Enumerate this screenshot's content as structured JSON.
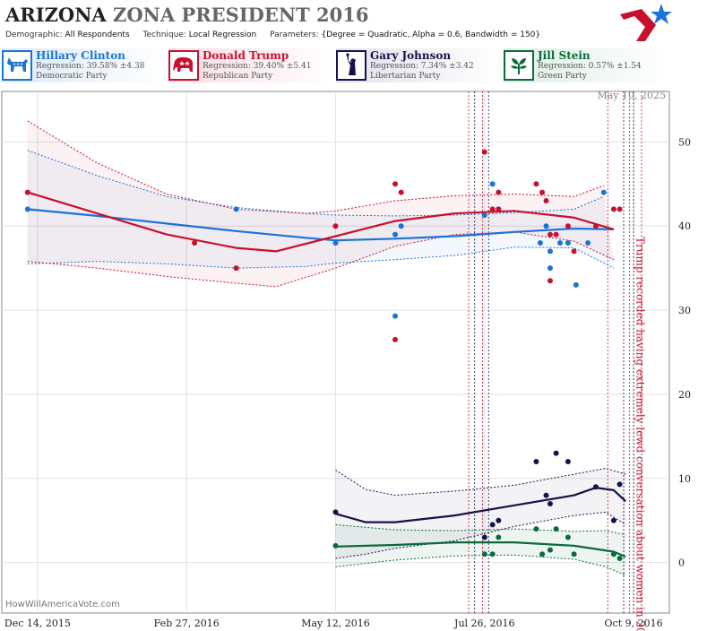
{
  "header": {
    "title_state": "ARIZONA",
    "title_rest": "ZONA PRESIDENT 2016",
    "demographic_label": "Demographic:",
    "demographic_value": "All Respondents",
    "technique_label": "Technique:",
    "technique_value": "Local Regression",
    "parameters_label": "Parameters:",
    "parameters_value": "{Degree = Quadratic, Alpha = 0.6, Bandwidth = 150}"
  },
  "candidates": [
    {
      "name": "Hillary Clinton",
      "regression": "Regression: 39.58% ±4.38",
      "party": "Democratic Party",
      "color": "#1a73d6",
      "icon": "donkey-icon"
    },
    {
      "name": "Donald Trump",
      "regression": "Regression: 39.40% ±5.41",
      "party": "Republican Party",
      "color": "#c8102e",
      "icon": "elephant-icon"
    },
    {
      "name": "Gary Johnson",
      "regression": "Regression: 7.34% ±3.42",
      "party": "Libertarian Party",
      "color": "#14124a",
      "icon": "statue-of-liberty-icon"
    },
    {
      "name": "Jill Stein",
      "regression": "Regression: 0.57% ±1.54",
      "party": "Green Party",
      "color": "#0a6b3a",
      "icon": "leaf-icon"
    }
  ],
  "watermark": "HowWillAmericaVote.com",
  "datestamp": "May 10, 2025",
  "chart_data": {
    "type": "scatter",
    "x_tick_labels": [
      "Dec 14, 2015",
      "Feb 27, 2016",
      "May 12, 2016",
      "Jul 26, 2016",
      "Oct 9, 2016"
    ],
    "x_ticks": [
      "2015-12-14",
      "2016-02-27",
      "2016-05-12",
      "2016-07-26",
      "2016-10-09"
    ],
    "xlim": [
      "2015-11-26",
      "2016-10-27"
    ],
    "y_ticks": [
      0,
      10,
      20,
      30,
      40,
      50
    ],
    "ylim": [
      -6,
      56
    ],
    "grid": true,
    "annotation": "Trump recorded having extremely lewd conversation about women in 2005",
    "annotation_date": "2016-10-07",
    "event_lines": [
      "2016-07-18",
      "2016-07-21",
      "2016-07-25",
      "2016-07-28",
      "2016-09-26",
      "2016-10-04",
      "2016-10-07",
      "2016-10-09",
      "2016-10-13"
    ],
    "series": [
      {
        "name": "Hillary Clinton",
        "color": "#1a73d6",
        "points": [
          [
            "2015-12-09",
            42
          ],
          [
            "2016-03-23",
            42
          ],
          [
            "2016-05-12",
            38
          ],
          [
            "2016-06-11",
            29.3
          ],
          [
            "2016-06-11",
            39
          ],
          [
            "2016-06-14",
            40
          ],
          [
            "2016-07-26",
            41.3
          ],
          [
            "2016-07-30",
            45
          ],
          [
            "2016-08-02",
            42
          ],
          [
            "2016-08-23",
            38
          ],
          [
            "2016-08-26",
            40
          ],
          [
            "2016-08-28",
            35
          ],
          [
            "2016-08-28",
            37
          ],
          [
            "2016-09-02",
            38
          ],
          [
            "2016-09-06",
            38
          ],
          [
            "2016-09-10",
            33
          ],
          [
            "2016-09-16",
            38
          ],
          [
            "2016-09-24",
            44
          ]
        ],
        "fit": [
          [
            "2015-12-09",
            42
          ],
          [
            "2016-01-13",
            41.2
          ],
          [
            "2016-02-17",
            40.3
          ],
          [
            "2016-03-23",
            39.4
          ],
          [
            "2016-04-27",
            38.6
          ],
          [
            "2016-05-12",
            38.3
          ],
          [
            "2016-06-11",
            38.5
          ],
          [
            "2016-07-11",
            38.8
          ],
          [
            "2016-08-10",
            39.3
          ],
          [
            "2016-09-09",
            39.7
          ],
          [
            "2016-09-29",
            39.6
          ]
        ],
        "fit_upper": [
          [
            "2015-12-09",
            49
          ],
          [
            "2016-01-13",
            46
          ],
          [
            "2016-02-17",
            43.5
          ],
          [
            "2016-03-23",
            42.2
          ],
          [
            "2016-04-27",
            41.5
          ],
          [
            "2016-05-12",
            41.3
          ],
          [
            "2016-06-11",
            41.2
          ],
          [
            "2016-07-11",
            41.3
          ],
          [
            "2016-08-10",
            41.6
          ],
          [
            "2016-09-09",
            42
          ],
          [
            "2016-09-24",
            43.5
          ]
        ],
        "fit_lower": [
          [
            "2015-12-09",
            35.5
          ],
          [
            "2016-01-13",
            35.8
          ],
          [
            "2016-02-17",
            35.5
          ],
          [
            "2016-03-23",
            35
          ],
          [
            "2016-04-27",
            35.2
          ],
          [
            "2016-05-12",
            35.6
          ],
          [
            "2016-06-11",
            36
          ],
          [
            "2016-07-11",
            36.5
          ],
          [
            "2016-08-10",
            37.5
          ],
          [
            "2016-09-09",
            37.4
          ],
          [
            "2016-09-29",
            35
          ]
        ]
      },
      {
        "name": "Donald Trump",
        "color": "#c8102e",
        "points": [
          [
            "2015-12-09",
            44
          ],
          [
            "2016-03-02",
            38
          ],
          [
            "2016-03-23",
            35
          ],
          [
            "2016-05-12",
            40
          ],
          [
            "2016-06-11",
            26.5
          ],
          [
            "2016-06-11",
            45
          ],
          [
            "2016-06-14",
            44
          ],
          [
            "2016-07-26",
            48.8
          ],
          [
            "2016-07-30",
            42
          ],
          [
            "2016-08-02",
            44
          ],
          [
            "2016-08-02",
            42
          ],
          [
            "2016-08-21",
            45
          ],
          [
            "2016-08-24",
            44
          ],
          [
            "2016-08-26",
            43
          ],
          [
            "2016-08-28",
            39
          ],
          [
            "2016-08-28",
            33.5
          ],
          [
            "2016-08-31",
            39
          ],
          [
            "2016-09-06",
            40
          ],
          [
            "2016-09-09",
            37
          ],
          [
            "2016-09-20",
            40
          ],
          [
            "2016-09-29",
            42
          ],
          [
            "2016-10-02",
            42
          ]
        ],
        "fit": [
          [
            "2015-12-09",
            44
          ],
          [
            "2016-01-13",
            41.5
          ],
          [
            "2016-02-17",
            39
          ],
          [
            "2016-03-23",
            37.4
          ],
          [
            "2016-04-12",
            37
          ],
          [
            "2016-05-12",
            38.8
          ],
          [
            "2016-06-11",
            40.6
          ],
          [
            "2016-07-11",
            41.5
          ],
          [
            "2016-08-10",
            41.8
          ],
          [
            "2016-09-09",
            41
          ],
          [
            "2016-09-29",
            39.6
          ]
        ],
        "fit_upper": [
          [
            "2015-12-09",
            52.5
          ],
          [
            "2016-01-13",
            47.5
          ],
          [
            "2016-02-17",
            43.8
          ],
          [
            "2016-03-23",
            42
          ],
          [
            "2016-04-27",
            41.5
          ],
          [
            "2016-05-12",
            41.8
          ],
          [
            "2016-06-11",
            43
          ],
          [
            "2016-07-11",
            43.6
          ],
          [
            "2016-08-10",
            43.8
          ],
          [
            "2016-09-09",
            43.5
          ],
          [
            "2016-09-24",
            44.8
          ]
        ],
        "fit_lower": [
          [
            "2015-12-09",
            35.8
          ],
          [
            "2016-01-13",
            35
          ],
          [
            "2016-02-17",
            34
          ],
          [
            "2016-03-23",
            33.2
          ],
          [
            "2016-04-12",
            32.8
          ],
          [
            "2016-05-12",
            35
          ],
          [
            "2016-06-11",
            37.6
          ],
          [
            "2016-07-11",
            39
          ],
          [
            "2016-08-10",
            39.3
          ],
          [
            "2016-09-09",
            38.2
          ],
          [
            "2016-09-29",
            36
          ]
        ]
      },
      {
        "name": "Gary Johnson",
        "color": "#14124a",
        "points": [
          [
            "2016-05-12",
            6
          ],
          [
            "2016-07-26",
            3
          ],
          [
            "2016-07-30",
            4.5
          ],
          [
            "2016-08-02",
            5
          ],
          [
            "2016-08-21",
            12
          ],
          [
            "2016-08-26",
            8
          ],
          [
            "2016-08-28",
            7
          ],
          [
            "2016-08-31",
            13
          ],
          [
            "2016-09-06",
            12
          ],
          [
            "2016-09-20",
            9
          ],
          [
            "2016-09-29",
            5
          ],
          [
            "2016-10-02",
            9.3
          ]
        ],
        "fit": [
          [
            "2016-05-12",
            5.8
          ],
          [
            "2016-05-27",
            4.8
          ],
          [
            "2016-06-11",
            4.8
          ],
          [
            "2016-07-11",
            5.6
          ],
          [
            "2016-08-10",
            6.8
          ],
          [
            "2016-09-09",
            8
          ],
          [
            "2016-09-20",
            8.9
          ],
          [
            "2016-09-29",
            8.6
          ],
          [
            "2016-10-05",
            7.3
          ]
        ],
        "fit_upper": [
          [
            "2016-05-12",
            11
          ],
          [
            "2016-05-27",
            8.7
          ],
          [
            "2016-06-11",
            8
          ],
          [
            "2016-07-11",
            8.5
          ],
          [
            "2016-08-10",
            9.2
          ],
          [
            "2016-09-09",
            10.5
          ],
          [
            "2016-09-25",
            11.2
          ],
          [
            "2016-10-05",
            10.5
          ]
        ],
        "fit_lower": [
          [
            "2016-05-12",
            0.5
          ],
          [
            "2016-05-27",
            1
          ],
          [
            "2016-06-11",
            1.7
          ],
          [
            "2016-07-11",
            2.6
          ],
          [
            "2016-08-10",
            4.3
          ],
          [
            "2016-09-09",
            5.6
          ],
          [
            "2016-09-25",
            6
          ],
          [
            "2016-10-05",
            4.5
          ]
        ]
      },
      {
        "name": "Jill Stein",
        "color": "#0a6b3a",
        "points": [
          [
            "2016-05-12",
            2
          ],
          [
            "2016-07-26",
            1
          ],
          [
            "2016-07-30",
            1
          ],
          [
            "2016-08-02",
            3
          ],
          [
            "2016-08-21",
            4
          ],
          [
            "2016-08-24",
            1
          ],
          [
            "2016-08-28",
            1.5
          ],
          [
            "2016-08-31",
            4
          ],
          [
            "2016-09-06",
            3
          ],
          [
            "2016-09-09",
            1
          ],
          [
            "2016-09-29",
            1
          ],
          [
            "2016-10-02",
            0.5
          ]
        ],
        "fit": [
          [
            "2016-05-12",
            1.9
          ],
          [
            "2016-06-11",
            2.1
          ],
          [
            "2016-07-11",
            2.4
          ],
          [
            "2016-08-10",
            2.4
          ],
          [
            "2016-09-09",
            2
          ],
          [
            "2016-09-29",
            1.3
          ],
          [
            "2016-10-05",
            0.7
          ]
        ],
        "fit_upper": [
          [
            "2016-05-12",
            4.5
          ],
          [
            "2016-06-11",
            3.9
          ],
          [
            "2016-07-11",
            3.8
          ],
          [
            "2016-08-10",
            4
          ],
          [
            "2016-09-09",
            3.7
          ],
          [
            "2016-09-25",
            3.8
          ],
          [
            "2016-10-05",
            3.3
          ]
        ],
        "fit_lower": [
          [
            "2016-05-12",
            -0.5
          ],
          [
            "2016-06-11",
            0.3
          ],
          [
            "2016-07-11",
            0.8
          ],
          [
            "2016-08-10",
            0.9
          ],
          [
            "2016-09-09",
            0.4
          ],
          [
            "2016-09-25",
            -0.5
          ],
          [
            "2016-10-05",
            -1.5
          ]
        ]
      }
    ]
  }
}
